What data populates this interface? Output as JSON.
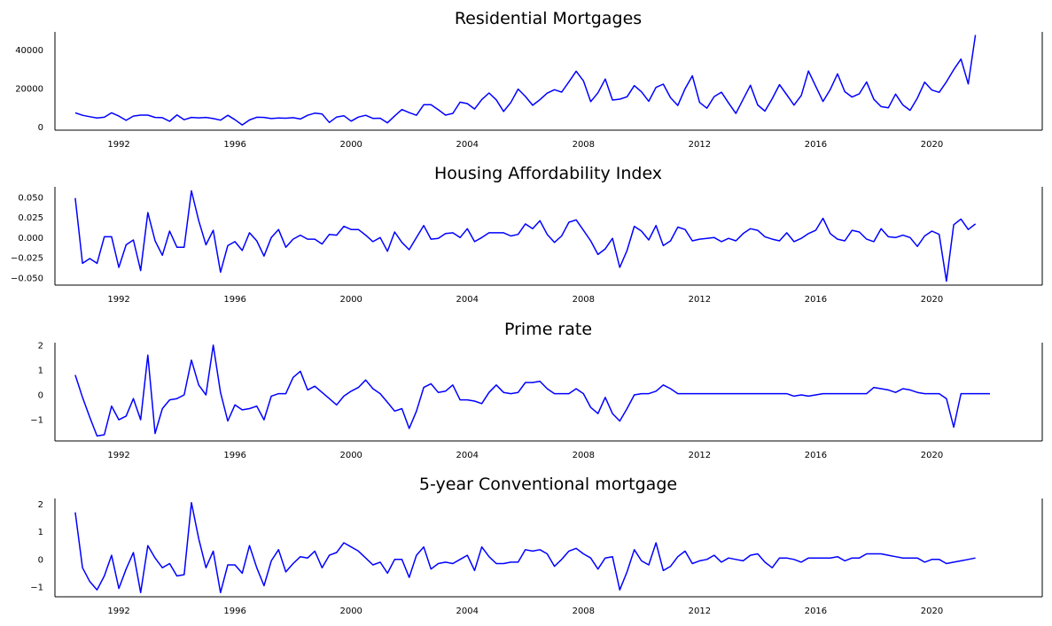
{
  "chart_data": [
    {
      "type": "line",
      "title": "Residential Mortgages",
      "xlabel": "",
      "ylabel": "",
      "x_start": "1990-Q3",
      "frequency": "quarterly",
      "xlim": [
        1989.8,
        2023.8
      ],
      "ylim": [
        -1500,
        49500
      ],
      "xticks": [
        "1992",
        "1996",
        "2000",
        "2004",
        "2008",
        "2012",
        "2016",
        "2020"
      ],
      "yticks": [
        0,
        20000,
        40000
      ],
      "color": "#0000ff",
      "grid": false,
      "values": [
        7500,
        6200,
        5500,
        4800,
        5200,
        7500,
        5800,
        3600,
        5800,
        6300,
        6300,
        5100,
        5000,
        3100,
        6400,
        3900,
        5100,
        4900,
        5100,
        4500,
        3700,
        6200,
        3900,
        1200,
        3800,
        5200,
        5100,
        4500,
        4800,
        4700,
        5000,
        4300,
        6200,
        7300,
        6900,
        2500,
        5300,
        6000,
        3200,
        5300,
        6200,
        4600,
        4700,
        2300,
        5900,
        9200,
        7600,
        6200,
        11700,
        11700,
        9100,
        6300,
        7200,
        13000,
        12300,
        9500,
        14400,
        17800,
        14200,
        8200,
        12900,
        19800,
        16000,
        11400,
        14300,
        17700,
        19500,
        18200,
        23600,
        29100,
        24100,
        13300,
        17900,
        25000,
        14100,
        14600,
        15800,
        21600,
        18400,
        13500,
        20700,
        22400,
        15300,
        11300,
        20000,
        26700,
        12900,
        9900,
        15900,
        18200,
        12600,
        7200,
        14500,
        21800,
        11600,
        8400,
        14800,
        22100,
        16900,
        11500,
        16500,
        29200,
        21300,
        13400,
        19600,
        27700,
        18500,
        15700,
        17400,
        23500,
        14500,
        10700,
        10100,
        17200,
        11600,
        8800,
        15200,
        23400,
        19300,
        18100,
        23600,
        29900,
        35400,
        22500,
        47900
      ]
    },
    {
      "type": "line",
      "title": "Housing Affordability Index",
      "xlabel": "",
      "ylabel": "",
      "x_start": "1990-Q3",
      "frequency": "quarterly",
      "xlim": [
        1989.8,
        2023.8
      ],
      "ylim": [
        -0.059,
        0.063
      ],
      "xticks": [
        "1992",
        "1996",
        "2000",
        "2004",
        "2008",
        "2012",
        "2016",
        "2020"
      ],
      "yticks": [
        "0.050",
        "0.025",
        "0.000",
        "−0.025",
        "−0.050"
      ],
      "ytick_values": [
        0.05,
        0.025,
        0,
        -0.025,
        -0.05
      ],
      "color": "#0000ff",
      "grid": false,
      "values": [
        0.049,
        -0.032,
        -0.026,
        -0.032,
        0.001,
        0.001,
        -0.037,
        -0.009,
        -0.003,
        -0.041,
        0.031,
        -0.004,
        -0.022,
        0.008,
        -0.012,
        -0.012,
        0.058,
        0.021,
        -0.009,
        0.009,
        -0.043,
        -0.01,
        -0.005,
        -0.016,
        0.006,
        -0.004,
        -0.023,
        0.0,
        0.01,
        -0.012,
        -0.002,
        0.003,
        -0.002,
        -0.002,
        -0.008,
        0.004,
        0.003,
        0.014,
        0.01,
        0.01,
        0.003,
        -0.005,
        0.0,
        -0.017,
        0.007,
        -0.006,
        -0.015,
        0.0,
        0.015,
        -0.002,
        -0.001,
        0.005,
        0.006,
        0.0,
        0.011,
        -0.005,
        0.0,
        0.006,
        0.006,
        0.006,
        0.002,
        0.004,
        0.017,
        0.011,
        0.021,
        0.004,
        -0.006,
        0.002,
        0.019,
        0.022,
        0.009,
        -0.004,
        -0.021,
        -0.014,
        -0.001,
        -0.037,
        -0.016,
        0.014,
        0.008,
        -0.003,
        0.015,
        -0.01,
        -0.004,
        0.013,
        0.01,
        -0.004,
        -0.002,
        -0.001,
        0.0,
        -0.005,
        -0.001,
        -0.004,
        0.005,
        0.011,
        0.009,
        0.001,
        -0.002,
        -0.004,
        0.006,
        -0.005,
        -0.001,
        0.005,
        0.009,
        0.024,
        0.005,
        -0.002,
        -0.004,
        0.009,
        0.007,
        -0.002,
        -0.005,
        0.011,
        0.001,
        0.0,
        0.003,
        0.0,
        -0.011,
        0.002,
        0.008,
        0.004,
        -0.054,
        0.016,
        0.023,
        0.01,
        0.017
      ]
    },
    {
      "type": "line",
      "title": "Prime rate",
      "xlabel": "",
      "ylabel": "",
      "x_start": "1990-Q3",
      "frequency": "quarterly",
      "xlim": [
        1989.8,
        2023.8
      ],
      "ylim": [
        -1.85,
        2.1
      ],
      "xticks": [
        "1992",
        "1996",
        "2000",
        "2004",
        "2008",
        "2012",
        "2016",
        "2020"
      ],
      "yticks": [
        2,
        1,
        0,
        -1
      ],
      "ytick_labels": [
        "2",
        "1",
        "0",
        "−1"
      ],
      "color": "#0000ff",
      "grid": false,
      "values": [
        0.8,
        -0.1,
        -0.9,
        -1.65,
        -1.6,
        -0.45,
        -1.0,
        -0.85,
        -0.15,
        -1.0,
        1.6,
        -1.55,
        -0.55,
        -0.2,
        -0.15,
        0.0,
        1.4,
        0.4,
        0.0,
        2.0,
        0.1,
        -1.05,
        -0.4,
        -0.6,
        -0.55,
        -0.45,
        -1.0,
        -0.05,
        0.05,
        0.05,
        0.7,
        0.95,
        0.2,
        0.35,
        0.1,
        -0.15,
        -0.4,
        -0.05,
        0.15,
        0.3,
        0.6,
        0.25,
        0.05,
        -0.3,
        -0.65,
        -0.55,
        -1.35,
        -0.65,
        0.3,
        0.45,
        0.1,
        0.15,
        0.4,
        -0.2,
        -0.2,
        -0.25,
        -0.35,
        0.1,
        0.4,
        0.1,
        0.05,
        0.1,
        0.5,
        0.5,
        0.55,
        0.25,
        0.05,
        0.05,
        0.05,
        0.25,
        0.05,
        -0.5,
        -0.75,
        -0.1,
        -0.75,
        -1.05,
        -0.55,
        0.0,
        0.05,
        0.05,
        0.15,
        0.4,
        0.25,
        0.05,
        0.05,
        0.05,
        0.05,
        0.05,
        0.05,
        0.05,
        0.05,
        0.05,
        0.05,
        0.05,
        0.05,
        0.05,
        0.05,
        0.05,
        0.05,
        -0.05,
        0.0,
        -0.05,
        0.0,
        0.05,
        0.05,
        0.05,
        0.05,
        0.05,
        0.05,
        0.05,
        0.3,
        0.25,
        0.2,
        0.1,
        0.25,
        0.2,
        0.1,
        0.05,
        0.05,
        0.05,
        -0.15,
        -1.3,
        0.05,
        0.05,
        0.05,
        0.05,
        0.05
      ]
    },
    {
      "type": "line",
      "title": "5-year Conventional mortgage",
      "xlabel": "",
      "ylabel": "",
      "x_start": "1990-Q3",
      "frequency": "quarterly",
      "xlim": [
        1989.8,
        2023.8
      ],
      "ylim": [
        -1.35,
        2.2
      ],
      "xticks": [
        "1992",
        "1996",
        "2000",
        "2004",
        "2008",
        "2012",
        "2016",
        "2020"
      ],
      "yticks": [
        2,
        1,
        0,
        -1
      ],
      "ytick_labels": [
        "2",
        "1",
        "0",
        "−1"
      ],
      "color": "#0000ff",
      "grid": false,
      "values": [
        1.7,
        -0.3,
        -0.8,
        -1.1,
        -0.6,
        0.15,
        -1.05,
        -0.35,
        0.25,
        -1.2,
        0.5,
        0.05,
        -0.3,
        -0.15,
        -0.6,
        -0.55,
        2.05,
        0.75,
        -0.3,
        0.3,
        -1.2,
        -0.2,
        -0.2,
        -0.5,
        0.5,
        -0.3,
        -0.95,
        -0.05,
        0.35,
        -0.45,
        -0.15,
        0.1,
        0.05,
        0.3,
        -0.3,
        0.15,
        0.25,
        0.6,
        0.45,
        0.3,
        0.05,
        -0.2,
        -0.1,
        -0.5,
        0.0,
        0.0,
        -0.65,
        0.15,
        0.45,
        -0.35,
        -0.15,
        -0.1,
        -0.15,
        0.0,
        0.15,
        -0.4,
        0.45,
        0.1,
        -0.15,
        -0.15,
        -0.1,
        -0.1,
        0.35,
        0.3,
        0.35,
        0.2,
        -0.25,
        0.0,
        0.3,
        0.4,
        0.2,
        0.05,
        -0.35,
        0.05,
        0.1,
        -1.1,
        -0.45,
        0.35,
        -0.05,
        -0.2,
        0.6,
        -0.4,
        -0.25,
        0.1,
        0.3,
        -0.15,
        -0.05,
        0.0,
        0.15,
        -0.1,
        0.05,
        0.0,
        -0.05,
        0.15,
        0.2,
        -0.1,
        -0.3,
        0.05,
        0.05,
        0.0,
        -0.1,
        0.05,
        0.05,
        0.05,
        0.05,
        0.1,
        -0.05,
        0.05,
        0.05,
        0.2,
        0.2,
        0.2,
        0.15,
        0.1,
        0.05,
        0.05,
        0.05,
        -0.1,
        0.0,
        0.0,
        -0.15,
        -0.1,
        -0.05,
        0.0,
        0.05
      ]
    }
  ]
}
